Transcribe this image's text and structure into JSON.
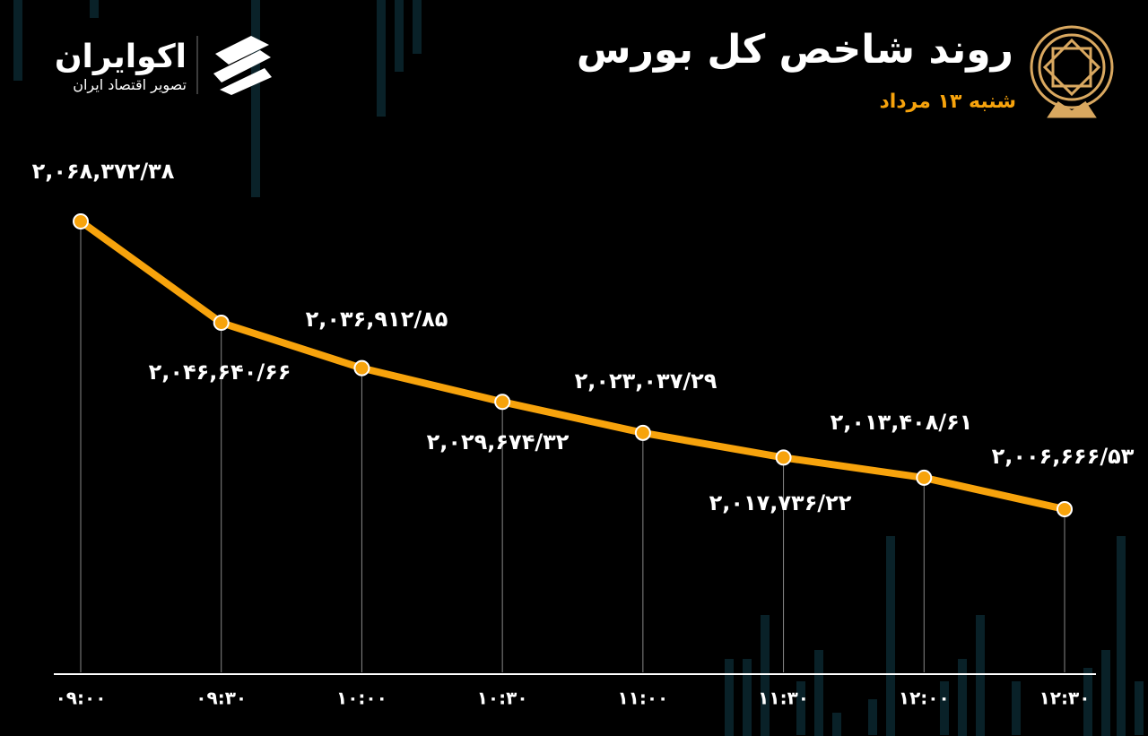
{
  "header": {
    "title": "روند شاخص کل بورس",
    "subtitle": "شنبه ۱۳ مرداد",
    "brand": "اکوایران",
    "brand_tagline": "تصویر اقتصاد ایران"
  },
  "chart_data": {
    "type": "line",
    "categories": [
      "۰۹:۰۰",
      "۰۹:۳۰",
      "۱۰:۰۰",
      "۱۰:۳۰",
      "۱۱:۰۰",
      "۱۱:۳۰",
      "۱۲:۰۰",
      "۱۲:۳۰"
    ],
    "series": [
      {
        "color": "#f7a30c",
        "values": [
          2068372.38,
          2046640.66,
          2036912.85,
          2029674.32,
          2023037.29,
          2017736.22,
          2013408.61,
          2006666.53
        ],
        "value_labels": [
          "۲,۰۶۸,۳۷۲/۳۸",
          "۲,۰۴۶,۶۴۰/۶۶",
          "۲,۰۳۶,۹۱۲/۸۵",
          "۲,۰۲۹,۶۷۴/۳۲",
          "۲,۰۲۳,۰۳۷/۲۹",
          "۲,۰۱۷,۷۳۶/۲۲",
          "۲,۰۱۳,۴۰۸/۶۱",
          "۲,۰۰۶,۶۶۶/۵۳"
        ]
      }
    ]
  }
}
